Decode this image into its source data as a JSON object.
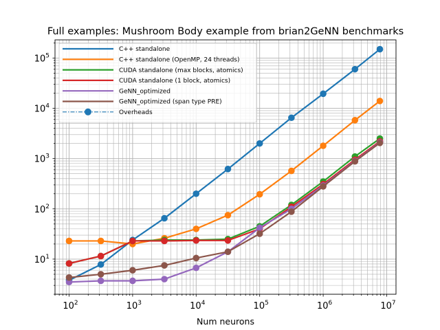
{
  "chart_data": {
    "type": "line",
    "title": "Full examples: Mushroom Body example from brian2GeNN benchmarks",
    "xlabel": "Num neurons",
    "ylabel": "",
    "xscale": "log",
    "yscale": "log",
    "xlim": [
      60,
      14000000
    ],
    "ylim": [
      2.0,
      230000
    ],
    "grid": "major and minor",
    "legend_position": "top-left",
    "x_ticks": [
      {
        "value": 100,
        "base": "10",
        "exp": "2"
      },
      {
        "value": 1000,
        "base": "10",
        "exp": "3"
      },
      {
        "value": 10000,
        "base": "10",
        "exp": "4"
      },
      {
        "value": 100000,
        "base": "10",
        "exp": "5"
      },
      {
        "value": 1000000,
        "base": "10",
        "exp": "6"
      },
      {
        "value": 10000000,
        "base": "10",
        "exp": "7"
      }
    ],
    "y_ticks": [
      {
        "value": 10,
        "base": "10",
        "exp": "1"
      },
      {
        "value": 100,
        "base": "10",
        "exp": "2"
      },
      {
        "value": 1000,
        "base": "10",
        "exp": "3"
      },
      {
        "value": 10000,
        "base": "10",
        "exp": "4"
      },
      {
        "value": 100000,
        "base": "10",
        "exp": "5"
      }
    ],
    "x": [
      100,
      316,
      1000,
      3162,
      10000,
      31623,
      100000,
      316228,
      1000000,
      3162278,
      7800000
    ],
    "series": [
      {
        "name": "C++ standalone",
        "color": "#1f77b4",
        "values": [
          3.8,
          7.8,
          24,
          65,
          200,
          620,
          2000,
          6500,
          19500,
          60000,
          150000
        ]
      },
      {
        "name": "C++ standalone (OpenMP, 24 threads)",
        "color": "#ff7f0e",
        "values": [
          23,
          23,
          20,
          26,
          40,
          75,
          195,
          570,
          1800,
          5800,
          14000
        ]
      },
      {
        "name": "CUDA standalone (max blocks, atomics)",
        "color": "#2ca02c",
        "values": [
          8.2,
          11.5,
          23,
          24,
          24,
          25,
          45,
          120,
          350,
          1100,
          2500
        ]
      },
      {
        "name": "CUDA standalone (1 block, atomics)",
        "color": "#d62728",
        "values": [
          8.2,
          11.5,
          23,
          23,
          23.5,
          23.5,
          40,
          110,
          310,
          950,
          2200
        ]
      },
      {
        "name": "GeNN_optimized",
        "color": "#9467bd",
        "values": [
          3.5,
          3.7,
          3.7,
          4.0,
          6.7,
          14,
          42,
          100,
          290,
          900,
          2100
        ]
      },
      {
        "name": "GeNN_optimized (span type PRE)",
        "color": "#8c564b",
        "values": [
          4.3,
          5.0,
          6.0,
          7.5,
          10.5,
          14,
          32,
          88,
          280,
          880,
          2050
        ]
      }
    ],
    "overheads_legend": {
      "name": "Overheads",
      "color": "#1f77b4",
      "linestyle": "dash-dot",
      "marker": "circle"
    }
  }
}
